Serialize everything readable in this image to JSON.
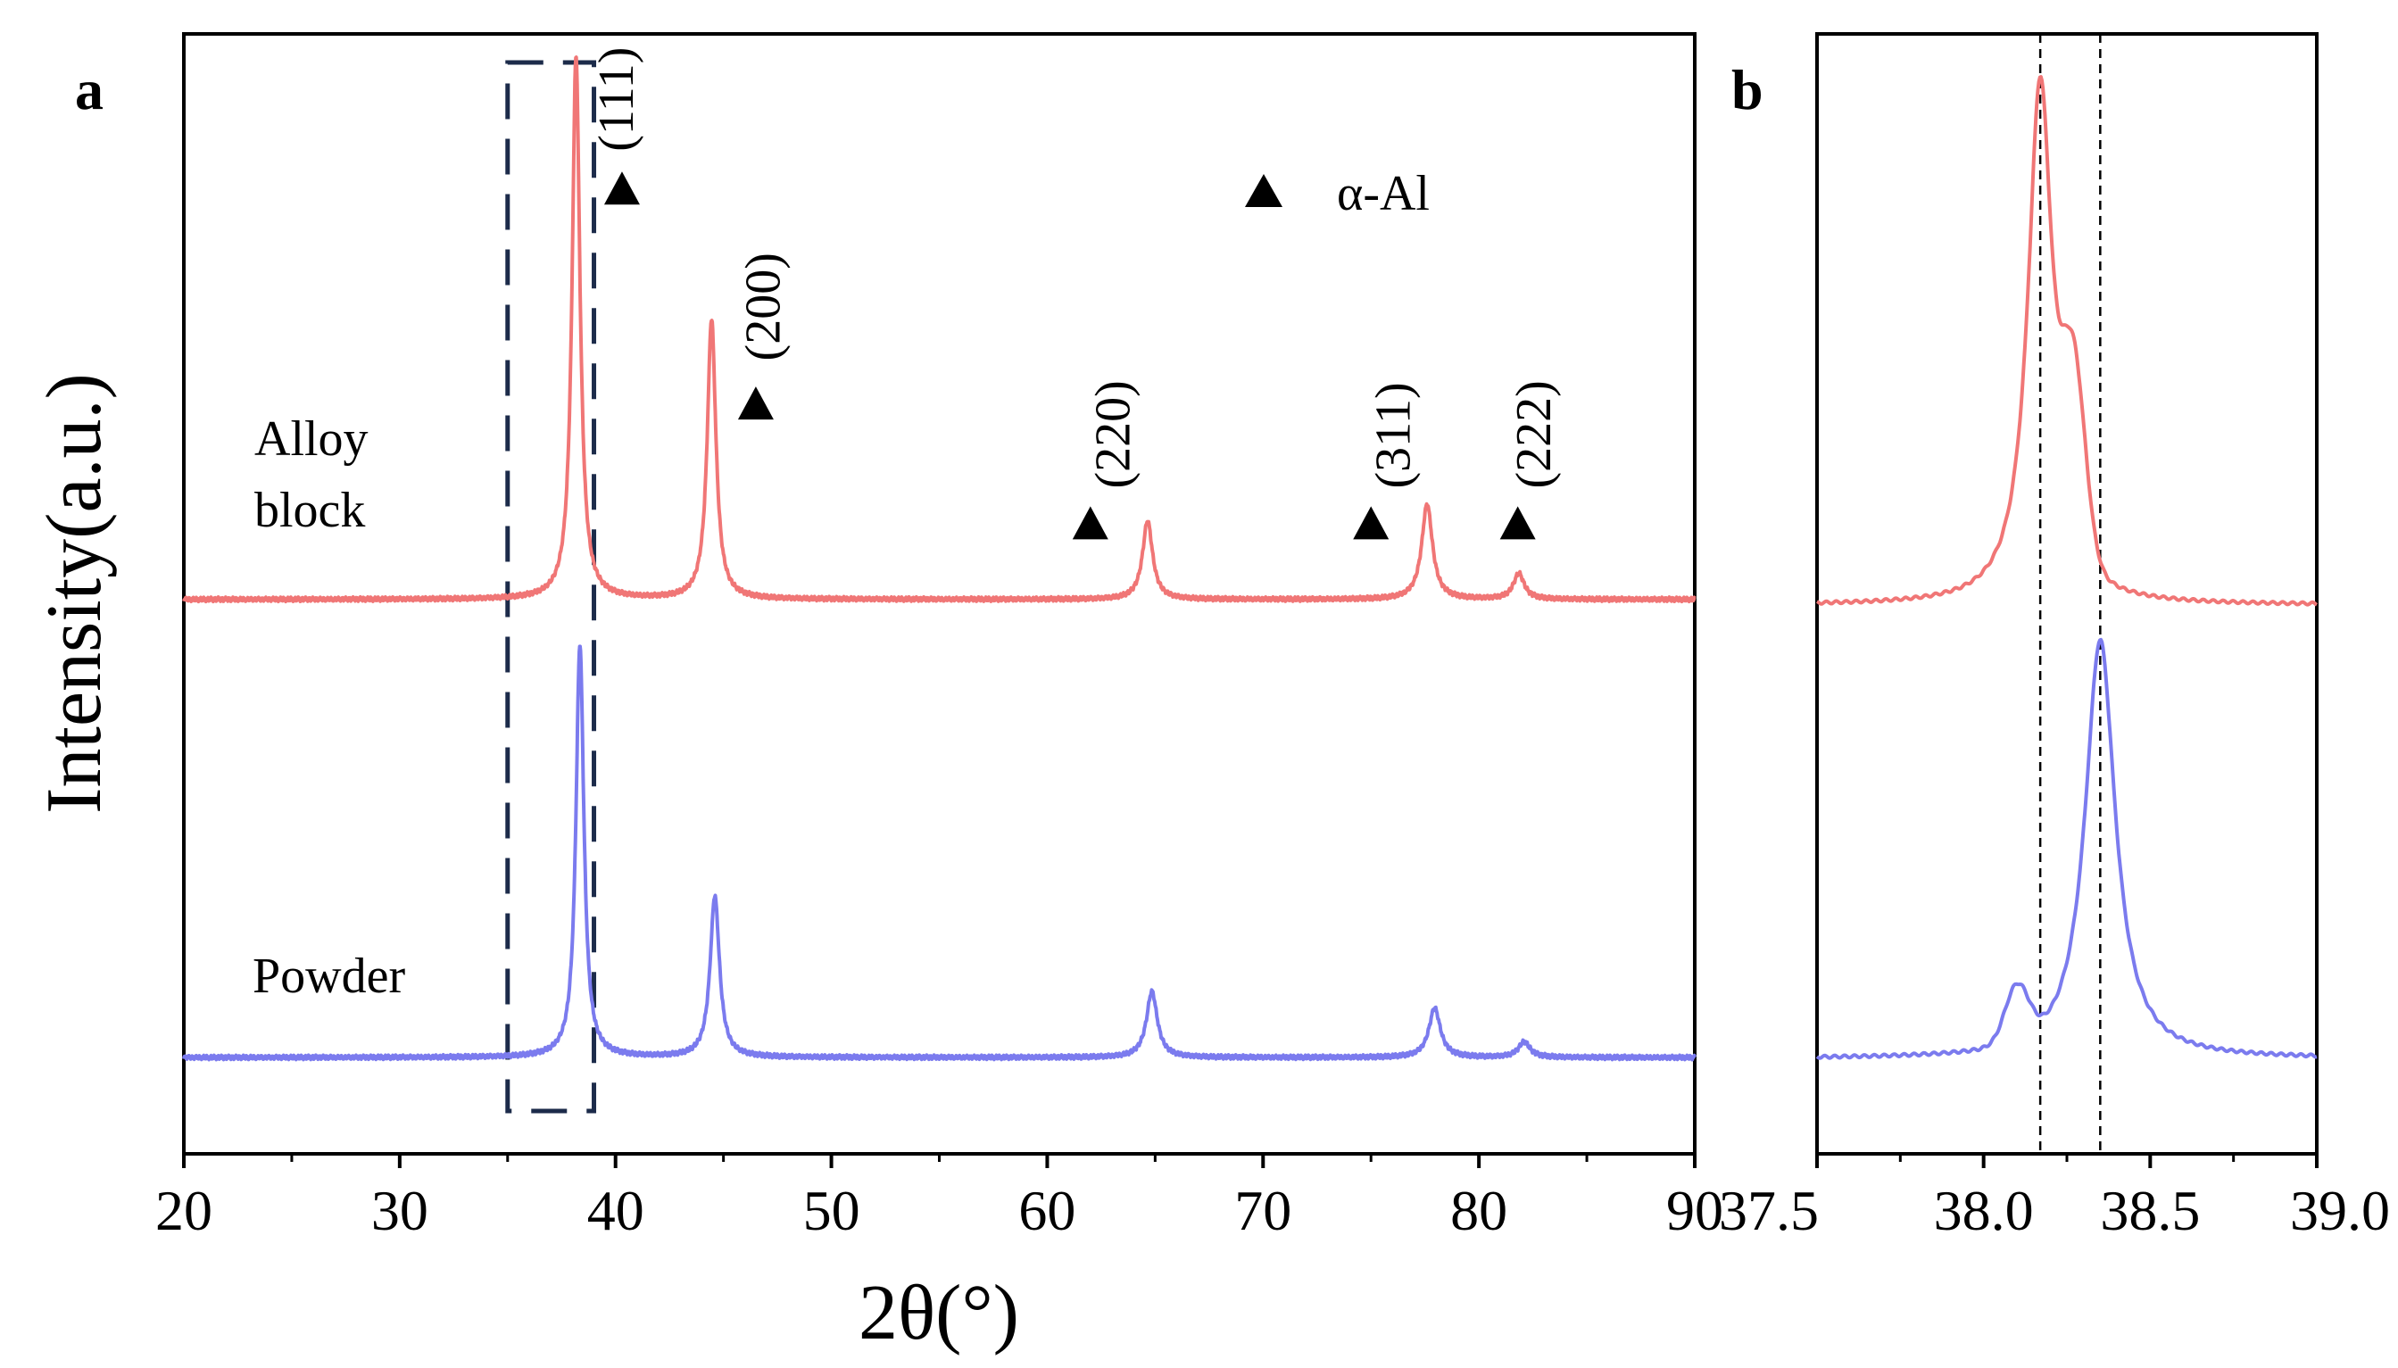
{
  "panel_a": {
    "letter": "a"
  },
  "panel_b": {
    "letter": "b"
  },
  "chart_data": [
    {
      "id": "a",
      "type": "line",
      "title": "",
      "xlabel": "2θ(°)",
      "ylabel": "Intensity(a.u.)",
      "xlim": [
        20,
        90
      ],
      "ylim": [
        0,
        100
      ],
      "xticks": [
        20,
        30,
        40,
        50,
        60,
        70,
        80,
        90
      ],
      "xtick_labels": [
        "20",
        "30",
        "40",
        "50",
        "60",
        "70",
        "80",
        "90"
      ],
      "grid": false,
      "legend": {
        "symbol": "▲",
        "label": "α-Al",
        "position": "top-right"
      },
      "highlight_box": {
        "x_range": [
          35,
          39
        ],
        "style": "dashed",
        "color": "#1c2b4a"
      },
      "series": [
        {
          "name": "Alloy block",
          "label_lines": [
            "Alloy",
            "block"
          ],
          "color": "#f07676",
          "baseline": 49.5,
          "peaks": [
            {
              "x": 38.17,
              "height": 48.5,
              "width": 0.22
            },
            {
              "x": 44.45,
              "height": 25.0,
              "width": 0.24
            },
            {
              "x": 64.65,
              "height": 7.0,
              "width": 0.28
            },
            {
              "x": 77.6,
              "height": 8.5,
              "width": 0.3
            },
            {
              "x": 81.85,
              "height": 2.3,
              "width": 0.3
            }
          ]
        },
        {
          "name": "Powder",
          "label_lines": [
            "Powder"
          ],
          "color": "#7b7bee",
          "baseline": 8.6,
          "peaks": [
            {
              "x": 38.35,
              "height": 36.9,
              "width": 0.22
            },
            {
              "x": 44.6,
              "height": 14.4,
              "width": 0.26
            },
            {
              "x": 64.85,
              "height": 5.9,
              "width": 0.3
            },
            {
              "x": 77.95,
              "height": 4.4,
              "width": 0.32
            },
            {
              "x": 82.1,
              "height": 1.4,
              "width": 0.32
            }
          ]
        }
      ],
      "annotations": [
        {
          "text": "(111)",
          "peak_x": 38.17,
          "marker_x": 40.3,
          "marker_y": 86.2,
          "label_x": 40.8,
          "label_base_y": 89.5
        },
        {
          "text": "(200)",
          "peak_x": 44.45,
          "marker_x": 46.5,
          "marker_y": 67.0,
          "label_x": 47.6,
          "label_base_y": 70.8
        },
        {
          "text": "(220)",
          "peak_x": 64.65,
          "marker_x": 62.0,
          "marker_y": 56.3,
          "label_x": 63.8,
          "label_base_y": 59.4
        },
        {
          "text": "(311)",
          "peak_x": 77.6,
          "marker_x": 75.0,
          "marker_y": 56.3,
          "label_x": 76.8,
          "label_base_y": 59.4
        },
        {
          "text": "(222)",
          "peak_x": 81.85,
          "marker_x": 81.8,
          "marker_y": 56.3,
          "label_x": 83.3,
          "label_base_y": 59.4
        }
      ]
    },
    {
      "id": "b",
      "type": "line",
      "title": "",
      "xlabel": "",
      "ylabel": "",
      "xlim": [
        37.5,
        39.0
      ],
      "ylim": [
        0,
        100
      ],
      "xticks": [
        37.5,
        38.0,
        38.5,
        39.0
      ],
      "xtick_labels": [
        "37.5",
        "38.0",
        "38.5",
        "39.0"
      ],
      "grid": false,
      "reference_lines": [
        38.17,
        38.35
      ],
      "series": [
        {
          "name": "Alloy block",
          "color": "#f07676",
          "baseline": 49.0,
          "peak_x": 38.17,
          "height": 47.0,
          "width": 0.045,
          "shoulder_x": 38.27,
          "shoulder_height": 16.0
        },
        {
          "name": "Powder",
          "color": "#7b7bee",
          "baseline": 8.5,
          "peak_x": 38.35,
          "height": 37.4,
          "width": 0.055,
          "shoulder_x": 38.1,
          "shoulder_height": 5.0
        }
      ]
    }
  ]
}
